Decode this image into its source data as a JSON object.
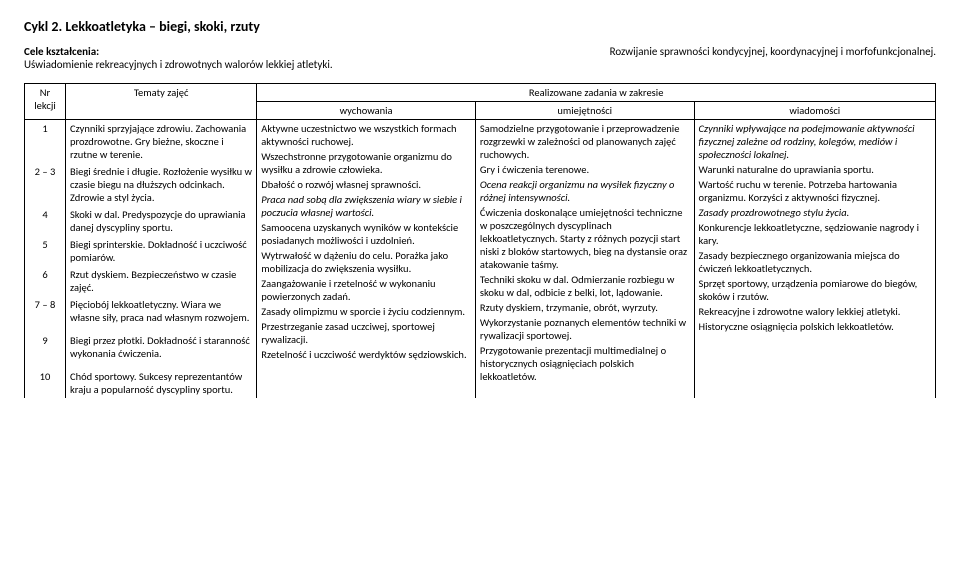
{
  "title": "Cykl 2. Lekkoatletyka – biegi, skoki, rzuty",
  "header": {
    "cele_label": "Cele kształcenia:",
    "cele_text": "Uświadomienie rekreacyjnych i zdrowotnych walorów lekkiej atletyki.",
    "right_text": "Rozwijanie sprawności kondycyjnej, koordynacyjnej i morfofunkcjonalnej."
  },
  "table_head": {
    "nr": "Nr lekcji",
    "tematy": "Tematy zajęć",
    "zadania": "Realizowane zadania w zakresie",
    "wychowania": "wychowania",
    "umiejetnosci": "umiejętności",
    "wiadomosci": "wiadomości"
  },
  "lessons": [
    {
      "nr": "1",
      "text": "Czynniki sprzyjające zdrowiu. Zachowania prozdrowotne. Gry bieżne, skoczne i rzutne w terenie."
    },
    {
      "nr": "2 – 3",
      "text": "Biegi średnie i długie. Rozłożenie wysiłku w czasie biegu na dłuższych odcinkach. Zdrowie a styl życia."
    },
    {
      "nr": "4",
      "text": "Skoki w dal. Predyspozycje do uprawiania danej dyscypliny sportu."
    },
    {
      "nr": "5",
      "text": "Biegi sprinterskie. Dokładność i uczciwość pomiarów."
    },
    {
      "nr": "6",
      "text": "Rzut dyskiem. Bezpieczeństwo w czasie zajęć."
    },
    {
      "nr": "7 – 8",
      "text": "Pięciobój lekkoatletyczny. Wiara we własne siły, praca nad własnym rozwojem."
    },
    {
      "nr": "9",
      "text": "Biegi przez płotki. Dokładność i staranność wykonania ćwiczenia."
    },
    {
      "nr": "10",
      "text": "Chód sportowy. Sukcesy reprezentantów kraju a popularność dyscypliny sportu."
    }
  ],
  "wychowania": {
    "p1": "Aktywne uczestnictwo we wszystkich formach aktywności ruchowej.",
    "p2": "Wszechstronne przygotowanie organizmu do wysiłku a zdrowie człowieka.",
    "p3": "Dbałość o rozwój własnej sprawności.",
    "p4i": "Praca nad sobą dla zwiększenia wiary w siebie i poczucia własnej wartości.",
    "p5": "Samoocena uzyskanych wyników w kontekście posiadanych możliwości i uzdolnień.",
    "p6": "Wytrwałość w dążeniu do celu. Porażka jako mobilizacja do zwiększenia wysiłku.",
    "p7": "Zaangażowanie i rzetelność w wykonaniu powierzonych zadań.",
    "p8": "Zasady olimpizmu w sporcie i życiu codziennym.",
    "p9": "Przestrzeganie zasad uczciwej, sportowej rywalizacji.",
    "p10": "Rzetelność i uczciwość werdyktów sędziowskich."
  },
  "umiejetnosci": {
    "p1": "Samodzielne przygotowanie i przeprowadzenie rozgrzewki w zależności od planowanych zajęć ruchowych.",
    "p2": "Gry i ćwiczenia terenowe.",
    "p3i": "Ocena reakcji organizmu na wysiłek fizyczny o różnej intensywności.",
    "p4a": "Ćwiczenia doskonalące umiejętności techniczne w poszczególnych dyscyplinach lekkoatletycznych.",
    "p4b": "Starty z różnych pozycji start niski z bloków startowych, bieg na dystansie oraz atakowanie taśmy.",
    "p5": "Techniki skoku w dal. Odmierzanie rozbiegu w skoku w dal, odbicie z belki, lot, lądowanie.",
    "p6": "Rzuty dyskiem, trzymanie, obrót, wyrzuty.",
    "p7": "Wykorzystanie poznanych elementów techniki w rywalizacji sportowej.",
    "p8": "Przygotowanie prezentacji multimedialnej o historycznych osiągnięciach polskich lekkoatletów."
  },
  "wiadomosci": {
    "p1i": "Czynniki wpływające na podejmowanie aktywności fizycznej zależne od rodziny, kolegów, mediów i społeczności lokalnej.",
    "p2": "Warunki naturalne do uprawiania sportu.",
    "p3": "Wartość ruchu w terenie. Potrzeba hartowania organizmu. Korzyści z aktywności fizycznej.",
    "p4i": "Zasady prozdrowotnego stylu życia.",
    "p5": "Konkurencje lekkoatletyczne, sędziowanie nagrody i kary.",
    "p6": "Zasady bezpiecznego organizowania miejsca do ćwiczeń lekkoatletycznych.",
    "p7": "Sprzęt sportowy, urządzenia pomiarowe do biegów, skoków i rzutów.",
    "p8": "Rekreacyjne i zdrowotne walory lekkiej atletyki.",
    "p9": "Historyczne osiągnięcia polskich lekkoatletów."
  }
}
